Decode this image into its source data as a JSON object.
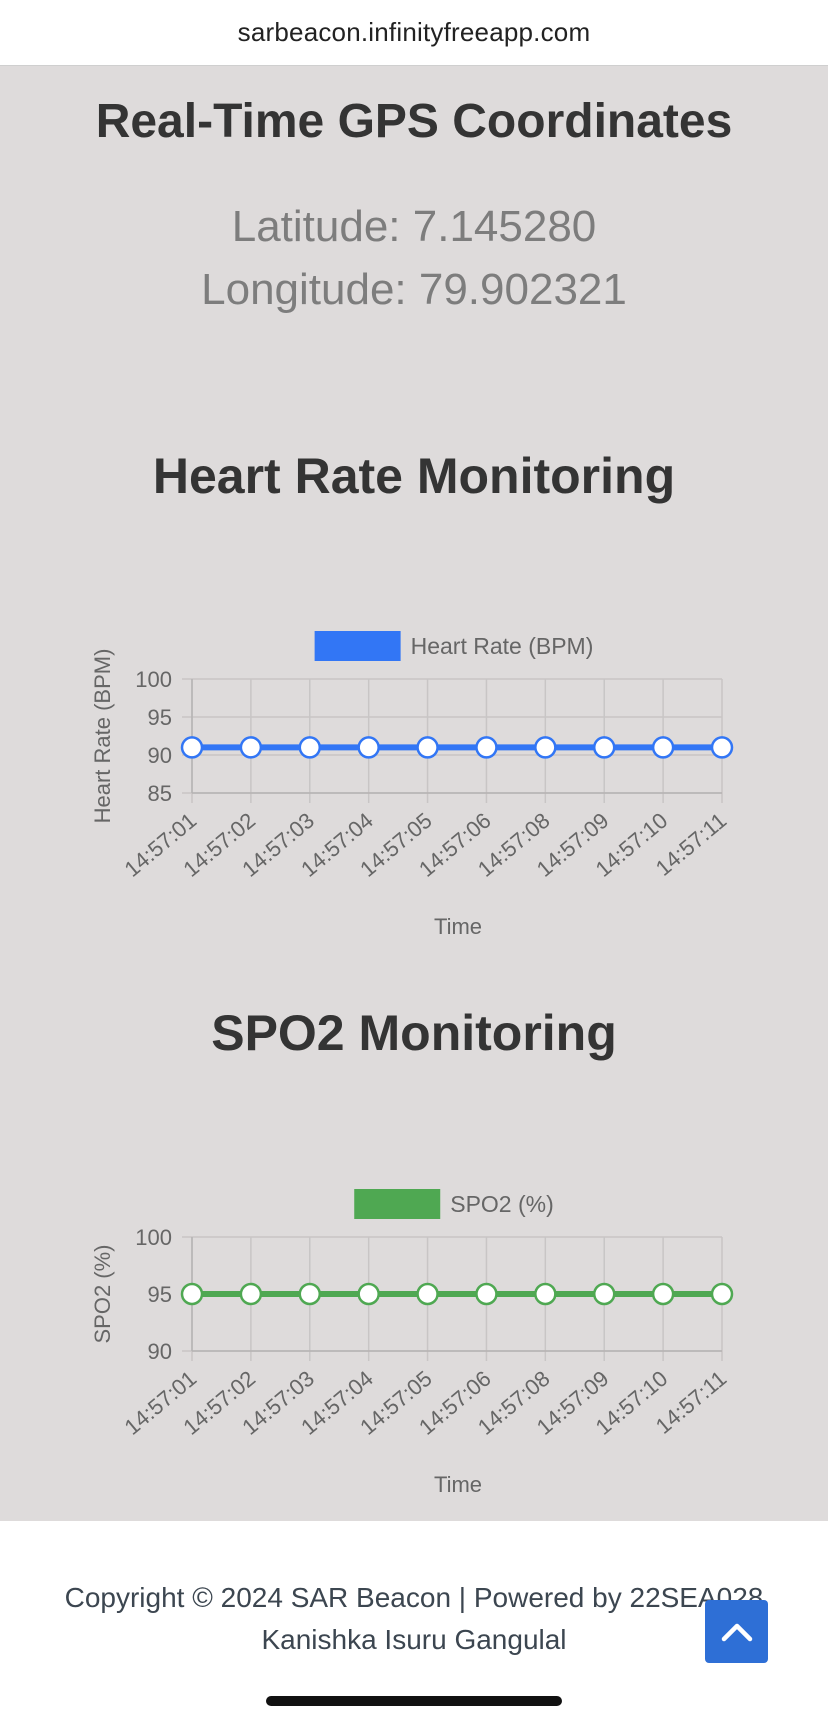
{
  "browser": {
    "url": "sarbeacon.infinityfreeapp.com"
  },
  "gps": {
    "title": "Real-Time GPS Coordinates",
    "latitude_text": "Latitude: 7.145280",
    "longitude_text": "Longitude: 79.902321"
  },
  "heart_rate": {
    "title": "Heart Rate Monitoring"
  },
  "spo2": {
    "title": "SPO2 Monitoring"
  },
  "footer": {
    "line1": "Copyright © 2024 SAR Beacon | Powered by 22SEA028",
    "line2": "Kanishka Isuru Gangulal",
    "scroll_top_icon": "chevron-up-icon"
  },
  "colors": {
    "heart_rate_series": "#3276f5",
    "spo2_series": "#4fa852",
    "scroll_top_button": "#2e6fd6"
  },
  "chart_data": [
    {
      "type": "line",
      "categories": [
        "14:57:01",
        "14:57:02",
        "14:57:03",
        "14:57:04",
        "14:57:05",
        "14:57:06",
        "14:57:08",
        "14:57:09",
        "14:57:10",
        "14:57:11"
      ],
      "series": [
        {
          "name": "Heart Rate (BPM)",
          "values": [
            91,
            91,
            91,
            91,
            91,
            91,
            91,
            91,
            91,
            91
          ],
          "color": "#3276f5"
        }
      ],
      "ylabel": "Heart Rate (BPM)",
      "xlabel": "Time",
      "ylim": [
        85,
        100
      ],
      "yticks": [
        100,
        95,
        90,
        85
      ],
      "legend": "top-center",
      "grid": true
    },
    {
      "type": "line",
      "categories": [
        "14:57:01",
        "14:57:02",
        "14:57:03",
        "14:57:04",
        "14:57:05",
        "14:57:06",
        "14:57:08",
        "14:57:09",
        "14:57:10",
        "14:57:11"
      ],
      "series": [
        {
          "name": "SPO2 (%)",
          "values": [
            95,
            95,
            95,
            95,
            95,
            95,
            95,
            95,
            95,
            95
          ],
          "color": "#4fa852"
        }
      ],
      "ylabel": "SPO2 (%)",
      "xlabel": "Time",
      "ylim": [
        90,
        100
      ],
      "yticks": [
        100,
        95,
        90
      ],
      "legend": "top-center",
      "grid": true
    }
  ]
}
